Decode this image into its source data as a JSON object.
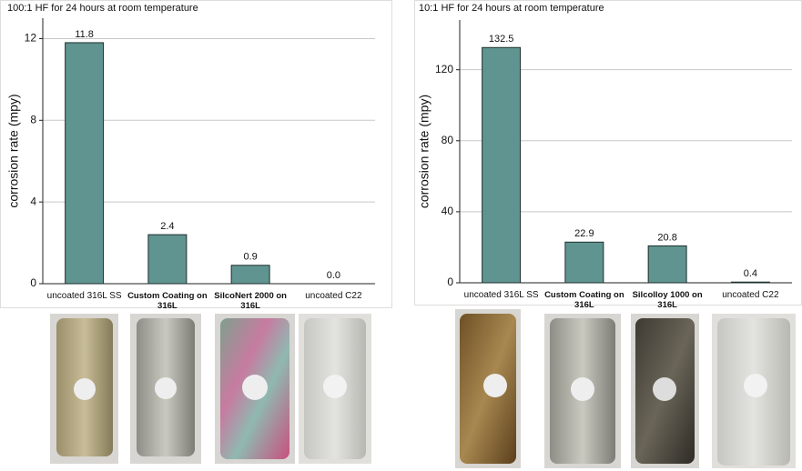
{
  "chart_data": [
    {
      "type": "bar",
      "title": "100:1 HF for 24 hours at room temperature",
      "y_label": "corrosion rate (mpy)",
      "categories": [
        "uncoated 316L SS",
        "Custom Coating on 316L",
        "SilcoNert 2000 on 316L",
        "uncoated C22"
      ],
      "values": [
        11.8,
        2.4,
        0.9,
        0.0
      ],
      "value_labels": [
        "11.8",
        "2.4",
        "0.9",
        "0.0"
      ],
      "color": "#5f9490",
      "ylim": [
        0,
        13
      ],
      "yticks": [
        0,
        4,
        8,
        12
      ],
      "grid": true
    },
    {
      "type": "bar",
      "title": "10:1 HF for 24 hours at room temperature",
      "y_label": "corrosion rate (mpy)",
      "categories": [
        "uncoated 316L SS",
        "Custom Coating on 316L",
        "Silcolloy 1000 on 316L",
        "uncoated C22"
      ],
      "values": [
        132.5,
        22.9,
        20.8,
        0.4
      ],
      "value_labels": [
        "132.5",
        "22.9",
        "20.8",
        "0.4"
      ],
      "color": "#5f9490",
      "ylim": [
        0,
        148
      ],
      "yticks": [
        0,
        40,
        80,
        120
      ],
      "grid": true
    }
  ]
}
